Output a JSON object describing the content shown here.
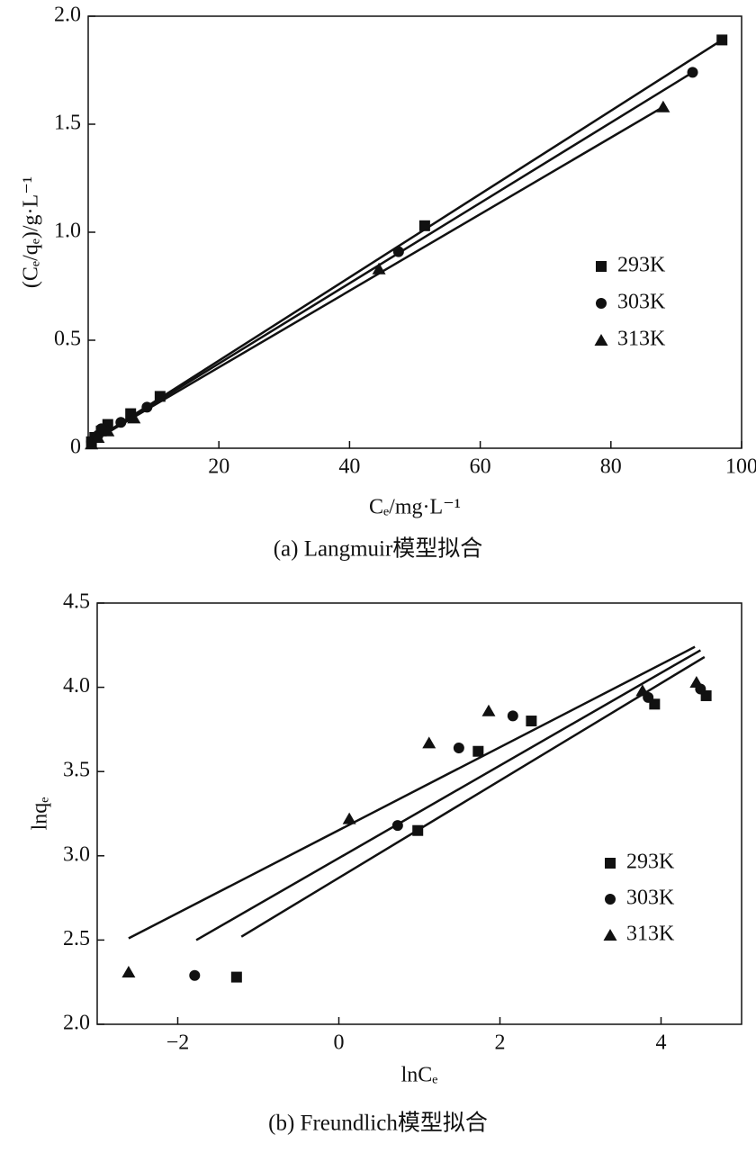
{
  "chart_data": [
    {
      "type": "scatter",
      "title": "(a) Langmuir模型拟合",
      "xlabel": "Cₑ/mg·L⁻¹",
      "ylabel": "(Cₑ/qₑ)/g·L⁻¹",
      "xlim": [
        0,
        100
      ],
      "ylim": [
        0,
        2.0
      ],
      "xticks": [
        20,
        40,
        60,
        80,
        100
      ],
      "yticks": [
        0,
        0.5,
        {
          "value": 1.0,
          "label": "1.0"
        },
        1.5,
        {
          "value": 2.0,
          "label": "2.0"
        }
      ],
      "legend": "right",
      "series": [
        {
          "name": "293K",
          "marker": "square",
          "color": "#111",
          "x": [
            0.5,
            1,
            2,
            3,
            6.5,
            11,
            51.5,
            97
          ],
          "values": [
            0.03,
            0.05,
            0.08,
            0.11,
            0.16,
            0.24,
            1.03,
            1.89
          ],
          "fit_x": [
            0,
            97
          ],
          "fit_y": [
            0.02,
            1.89
          ]
        },
        {
          "name": "303K",
          "marker": "circle",
          "color": "#111",
          "x": [
            0.5,
            1.5,
            2,
            5,
            9,
            47.5,
            92.5
          ],
          "values": [
            0.03,
            0.06,
            0.09,
            0.12,
            0.19,
            0.91,
            1.74
          ],
          "fit_x": [
            0,
            92.5
          ],
          "fit_y": [
            0.02,
            1.74
          ]
        },
        {
          "name": "313K",
          "marker": "triangle",
          "color": "#111",
          "x": [
            0.5,
            1.5,
            3,
            7,
            44.5,
            88
          ],
          "values": [
            0.02,
            0.05,
            0.08,
            0.14,
            0.83,
            1.58
          ],
          "fit_x": [
            0,
            88
          ],
          "fit_y": [
            0.02,
            1.58
          ]
        }
      ]
    },
    {
      "type": "scatter",
      "title": "(b) Freundlich模型拟合",
      "xlabel": "lnCₑ",
      "ylabel": "lnqₑ",
      "xlim": [
        -3,
        5
      ],
      "ylim": [
        2.0,
        4.5
      ],
      "xticks": [
        {
          "value": -2,
          "label": "−2"
        },
        0,
        2,
        4
      ],
      "yticks": [
        {
          "value": 2.0,
          "label": "2.0"
        },
        2.5,
        {
          "value": 3.0,
          "label": "3.0"
        },
        3.5,
        {
          "value": 4.0,
          "label": "4.0"
        },
        4.5
      ],
      "legend": "right",
      "series": [
        {
          "name": "293K",
          "marker": "square",
          "color": "#111",
          "x": [
            -1.27,
            0.98,
            1.73,
            2.39,
            3.92,
            4.56
          ],
          "values": [
            2.28,
            3.15,
            3.62,
            3.8,
            3.9,
            3.95
          ],
          "fit_x": [
            -1.21,
            4.54
          ],
          "fit_y": [
            2.52,
            4.18
          ]
        },
        {
          "name": "303K",
          "marker": "circle",
          "color": "#111",
          "x": [
            -1.79,
            0.73,
            1.49,
            2.16,
            3.84,
            4.49
          ],
          "values": [
            2.29,
            3.18,
            3.64,
            3.83,
            3.94,
            3.99
          ],
          "fit_x": [
            -1.77,
            4.49
          ],
          "fit_y": [
            2.5,
            4.22
          ]
        },
        {
          "name": "313K",
          "marker": "triangle",
          "color": "#111",
          "x": [
            -2.61,
            0.13,
            1.12,
            1.86,
            3.77,
            4.44
          ],
          "values": [
            2.31,
            3.22,
            3.67,
            3.86,
            3.98,
            4.03
          ],
          "fit_x": [
            -2.61,
            4.42
          ],
          "fit_y": [
            2.51,
            4.24
          ]
        }
      ]
    }
  ]
}
